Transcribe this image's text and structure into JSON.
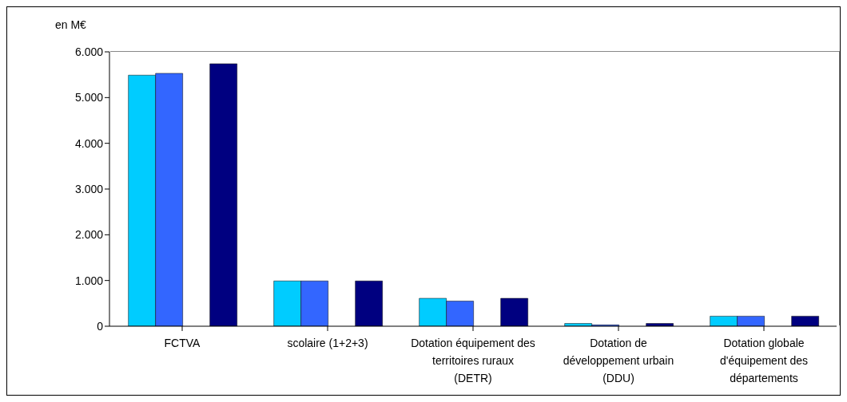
{
  "chart_data": {
    "type": "bar",
    "ylabel": "en M€",
    "categories": [
      "FCTVA",
      "scolaire (1+2+3)",
      "Dotation équipement des territoires ruraux (DETR)",
      "Dotation de développement urbain (DDU)",
      "Dotation globale d'équipement des départements"
    ],
    "series": [
      {
        "color": "#00ccff",
        "values": [
          5490,
          990,
          610,
          60,
          220
        ]
      },
      {
        "color": "#3366ff",
        "values": [
          5530,
          990,
          550,
          30,
          220
        ]
      },
      {
        "values": [
          null,
          null,
          null,
          null,
          null
        ]
      },
      {
        "color": "#000080",
        "values": [
          5740,
          990,
          610,
          60,
          220
        ]
      }
    ],
    "ylim": [
      0,
      6000
    ],
    "yticks": [
      {
        "value": 0,
        "label": "0"
      },
      {
        "value": 1000,
        "label": "1.000"
      },
      {
        "value": 2000,
        "label": "2.000"
      },
      {
        "value": 3000,
        "label": "3.000"
      },
      {
        "value": 4000,
        "label": "4.000"
      },
      {
        "value": 5000,
        "label": "5.000"
      },
      {
        "value": 6000,
        "label": "6.000"
      }
    ],
    "grid": false,
    "legend": false
  }
}
